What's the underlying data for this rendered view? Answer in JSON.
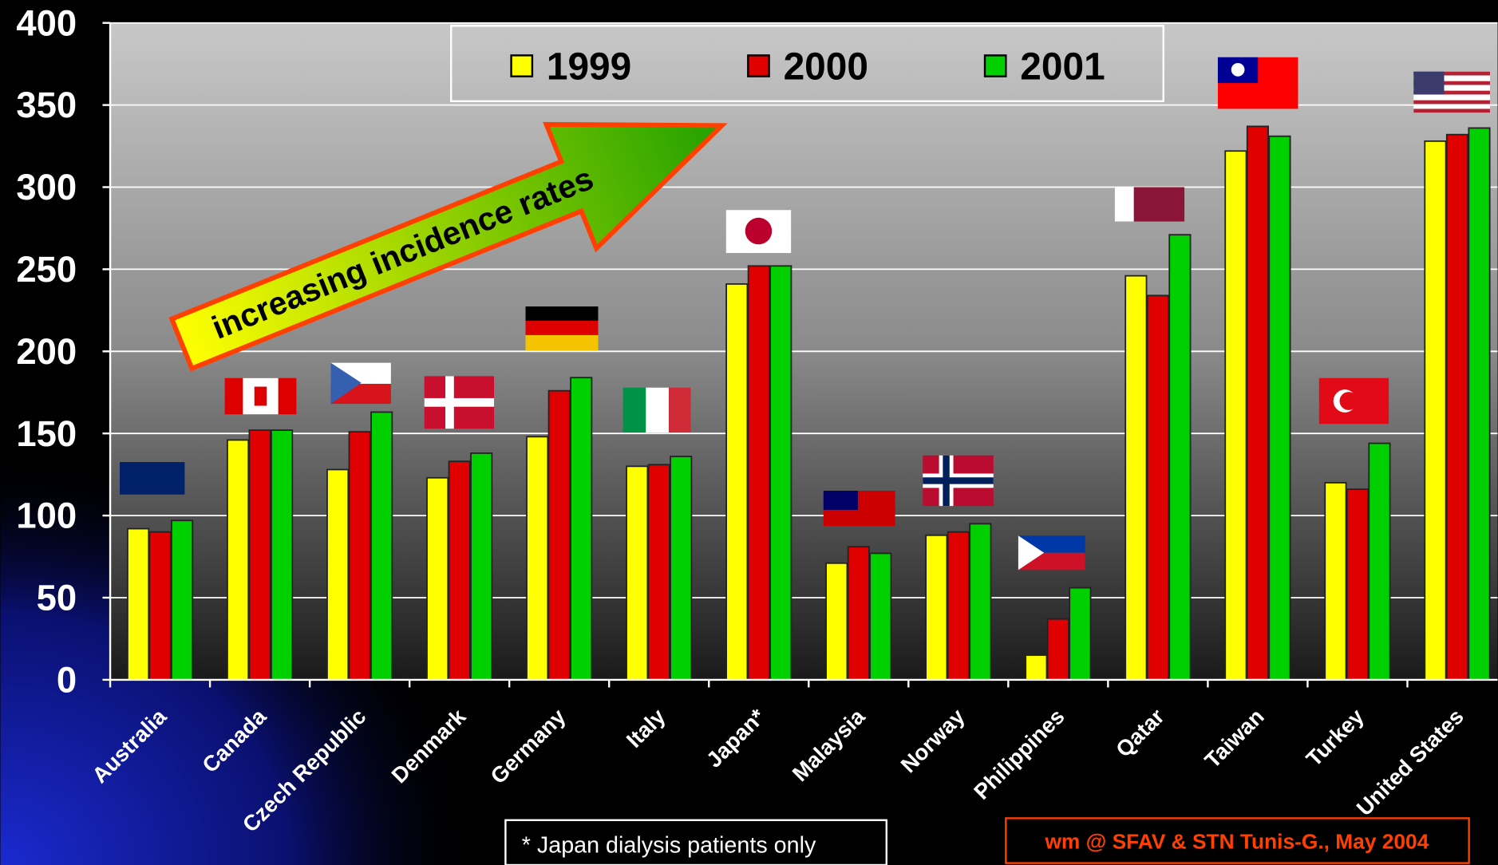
{
  "chart_data": {
    "type": "bar",
    "annotation": "increasing incidence rates",
    "footnote": "* Japan dialysis patients only",
    "credit": "wm @ SFAV & STN Tunis-G., May 2004",
    "categories": [
      "Australia",
      "Canada",
      "Czech Republic",
      "Denmark",
      "Germany",
      "Italy",
      "Japan*",
      "Malaysia",
      "Norway",
      "Philippines",
      "Qatar",
      "Taiwan",
      "Turkey",
      "United States"
    ],
    "series": [
      {
        "name": "1999",
        "color": "#ffff00",
        "values": [
          92,
          146,
          128,
          123,
          148,
          130,
          241,
          71,
          88,
          15,
          246,
          322,
          120,
          328
        ]
      },
      {
        "name": "2000",
        "color": "#e00000",
        "values": [
          90,
          152,
          151,
          133,
          176,
          131,
          252,
          81,
          90,
          37,
          234,
          337,
          116,
          332
        ]
      },
      {
        "name": "2001",
        "color": "#00d000",
        "values": [
          97,
          152,
          163,
          138,
          184,
          136,
          252,
          77,
          95,
          56,
          271,
          331,
          144,
          336
        ]
      }
    ],
    "ylim": [
      0,
      400
    ],
    "yticks": [
      0,
      50,
      100,
      150,
      200,
      250,
      300,
      350,
      400
    ],
    "grid": true,
    "legend": "top"
  }
}
